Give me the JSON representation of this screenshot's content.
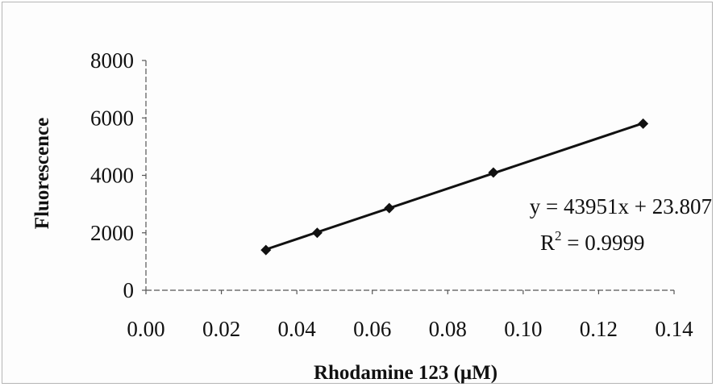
{
  "chart_data": {
    "type": "scatter",
    "title": "",
    "xlabel": "Rhodamine 123 (μM)",
    "ylabel": "Fluorescence",
    "xlim": [
      0,
      0.14
    ],
    "ylim": [
      0,
      8000
    ],
    "x_ticks": [
      "0.00",
      "0.02",
      "0.04",
      "0.06",
      "0.08",
      "0.10",
      "0.12",
      "0.14"
    ],
    "y_ticks": [
      "0",
      "2000",
      "4000",
      "6000",
      "8000"
    ],
    "series": [
      {
        "x": [
          0.0318,
          0.0454,
          0.0645,
          0.0921,
          0.1318
        ],
        "y": [
          1400,
          2000,
          2860,
          4100,
          5800
        ],
        "marker": "diamond",
        "color": "#111111"
      }
    ],
    "trendline": {
      "type": "linear",
      "slope": 43951,
      "intercept": 23.807,
      "color": "#111111"
    },
    "annotations": {
      "equation": "y = 43951x + 23.807",
      "r2_prefix": "R",
      "r2_sup": "2",
      "r2_rest": " = 0.9999"
    },
    "grid": false,
    "legend": "none"
  }
}
